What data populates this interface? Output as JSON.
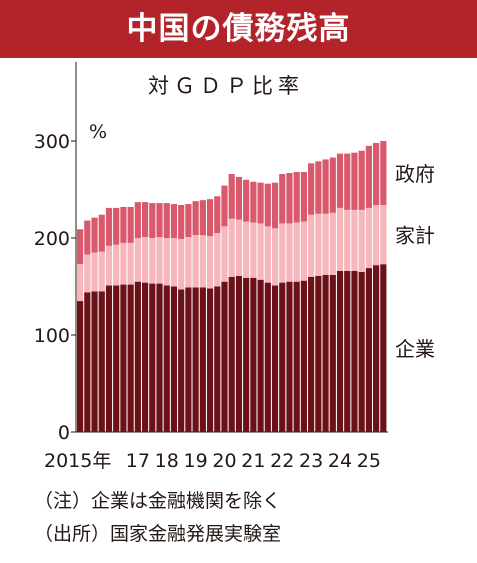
{
  "header": {
    "title": "中国の債務残高"
  },
  "subtitle": "対ＧＤＰ比率",
  "unit": "%",
  "notes": [
    "（注）企業は金融機関を除く",
    "（出所）国家金融発展実験室"
  ],
  "colors": {
    "banner": "#b2242a",
    "corporate": "#6b1219",
    "household": "#f7b6bb",
    "government": "#d9596c"
  },
  "chart_data": {
    "type": "bar",
    "stacked": true,
    "title": "中国の債務残高",
    "subtitle": "対ＧＤＰ比率",
    "ylabel": "%",
    "ylim": [
      0,
      300
    ],
    "yticks": [
      0,
      100,
      200,
      300
    ],
    "xtick_labels": [
      "2015年",
      "17",
      "18",
      "19",
      "20",
      "21",
      "22",
      "23",
      "24",
      "25"
    ],
    "x_positions": [
      0,
      8,
      12,
      16,
      20,
      24,
      28,
      32,
      36,
      40
    ],
    "categories": [
      "2015Q1",
      "2015Q2",
      "2015Q3",
      "2015Q4",
      "2016Q1",
      "2016Q2",
      "2016Q3",
      "2016Q4",
      "2017Q1",
      "2017Q2",
      "2017Q3",
      "2017Q4",
      "2018Q1",
      "2018Q2",
      "2018Q3",
      "2018Q4",
      "2019Q1",
      "2019Q2",
      "2019Q3",
      "2019Q4",
      "2020Q1",
      "2020Q2",
      "2020Q3",
      "2020Q4",
      "2021Q1",
      "2021Q2",
      "2021Q3",
      "2021Q4",
      "2022Q1",
      "2022Q2",
      "2022Q3",
      "2022Q4",
      "2023Q1",
      "2023Q2",
      "2023Q3",
      "2023Q4",
      "2024Q1",
      "2024Q2",
      "2024Q3",
      "2024Q4",
      "2025Q1",
      "2025Q2",
      "2025Q3"
    ],
    "series": [
      {
        "name": "企業",
        "color": "#6b1219",
        "values": [
          135,
          144,
          145,
          145,
          151,
          151,
          152,
          152,
          155,
          154,
          153,
          153,
          151,
          150,
          147,
          149,
          149,
          149,
          148,
          150,
          155,
          160,
          161,
          159,
          159,
          157,
          154,
          151,
          154,
          155,
          155,
          156,
          160,
          161,
          162,
          162,
          166,
          166,
          166,
          165,
          169,
          172,
          173
        ]
      },
      {
        "name": "家計",
        "color": "#f7b6bb",
        "values": [
          38,
          39,
          40,
          41,
          41,
          42,
          43,
          43,
          45,
          47,
          47,
          48,
          49,
          50,
          52,
          52,
          54,
          54,
          54,
          55,
          57,
          60,
          58,
          58,
          57,
          58,
          58,
          59,
          61,
          60,
          61,
          61,
          64,
          64,
          63,
          64,
          65,
          63,
          63,
          64,
          62,
          62,
          61
        ]
      },
      {
        "name": "政府",
        "color": "#d9596c",
        "values": [
          36,
          35,
          36,
          38,
          39,
          38,
          37,
          37,
          37,
          36,
          36,
          35,
          36,
          35,
          35,
          34,
          35,
          36,
          38,
          38,
          42,
          46,
          44,
          43,
          42,
          42,
          44,
          47,
          51,
          52,
          52,
          51,
          53,
          54,
          56,
          57,
          56,
          58,
          59,
          61,
          64,
          64,
          66
        ]
      }
    ]
  }
}
